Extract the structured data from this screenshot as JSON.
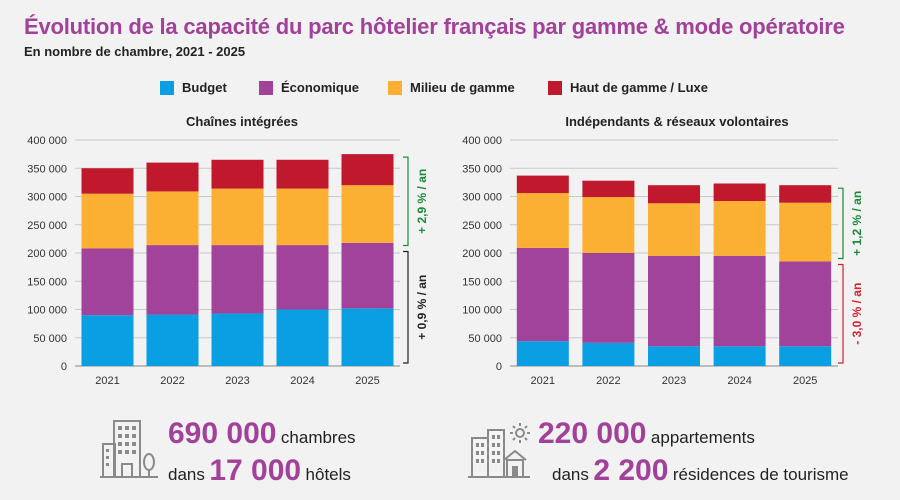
{
  "title": "Évolution de la capacité du parc hôtelier français par gamme & mode opératoire",
  "subtitle": "En nombre de chambre, 2021 - 2025",
  "colors": {
    "budget": "#0a9fe3",
    "economique": "#a2439b",
    "milieu": "#fbb034",
    "haut": "#c0182c",
    "accent": "#a2419a",
    "up": "#1c8a3b",
    "down": "#d6202c"
  },
  "legend": [
    {
      "label": "Budget",
      "key": "budget"
    },
    {
      "label": "Économique",
      "key": "economique"
    },
    {
      "label": "Milieu de gamme",
      "key": "milieu"
    },
    {
      "label": "Haut de gamme / Luxe",
      "key": "haut"
    }
  ],
  "chart_data": [
    {
      "type": "bar",
      "stacked": true,
      "title": "Chaînes intégrées",
      "categories": [
        "2021",
        "2022",
        "2023",
        "2024",
        "2025"
      ],
      "series": [
        {
          "name": "Budget",
          "key": "budget",
          "values": [
            90000,
            91000,
            93000,
            100000,
            102000
          ]
        },
        {
          "name": "Économique",
          "key": "economique",
          "values": [
            118000,
            123000,
            121000,
            114000,
            116000
          ]
        },
        {
          "name": "Milieu de gamme",
          "key": "milieu",
          "values": [
            97000,
            95000,
            100000,
            100000,
            102000
          ]
        },
        {
          "name": "Haut de gamme / Luxe",
          "key": "haut",
          "values": [
            45000,
            51000,
            51000,
            51000,
            55000
          ]
        }
      ],
      "yticks": [
        "0",
        "50 000",
        "100 000",
        "150 000",
        "200 000",
        "250 000",
        "300 000",
        "350 000",
        "400 000"
      ],
      "ylim": [
        0,
        400000
      ],
      "annotations": [
        {
          "text": "+ 2,9 % / an",
          "from": 208000,
          "to": 375000,
          "trend": "up"
        },
        {
          "text": "+ 0,9 % / an",
          "from": 0,
          "to": 208000,
          "trend": "neutral"
        }
      ]
    },
    {
      "type": "bar",
      "stacked": true,
      "title": "Indépendants & réseaux volontaires",
      "categories": [
        "2021",
        "2022",
        "2023",
        "2024",
        "2025"
      ],
      "series": [
        {
          "name": "Budget",
          "key": "budget",
          "values": [
            44000,
            41000,
            35000,
            35000,
            35000
          ]
        },
        {
          "name": "Économique",
          "key": "economique",
          "values": [
            165000,
            159000,
            160000,
            160000,
            150000
          ]
        },
        {
          "name": "Milieu de gamme",
          "key": "milieu",
          "values": [
            97000,
            99000,
            93000,
            97000,
            104000
          ]
        },
        {
          "name": "Haut de gamme / Luxe",
          "key": "haut",
          "values": [
            31000,
            29000,
            32000,
            31000,
            31000
          ]
        }
      ],
      "yticks": [
        "0",
        "50 000",
        "100 000",
        "150 000",
        "200 000",
        "250 000",
        "300 000",
        "350 000",
        "400 000"
      ],
      "ylim": [
        0,
        400000
      ],
      "annotations": [
        {
          "text": "+ 1,2 % / an",
          "from": 185000,
          "to": 320000,
          "trend": "up"
        },
        {
          "text": "- 3,0 % / an",
          "from": 0,
          "to": 185000,
          "trend": "down"
        }
      ]
    }
  ],
  "kpis": {
    "hotels": {
      "big1": "690 000",
      "unit1": "chambres",
      "prefix2": "dans",
      "big2": "17 000",
      "unit2": "hôtels"
    },
    "residences": {
      "big1": "220 000",
      "unit1": "appartements",
      "prefix2": "dans",
      "big2": "2 200",
      "unit2": "résidences de tourisme"
    }
  }
}
